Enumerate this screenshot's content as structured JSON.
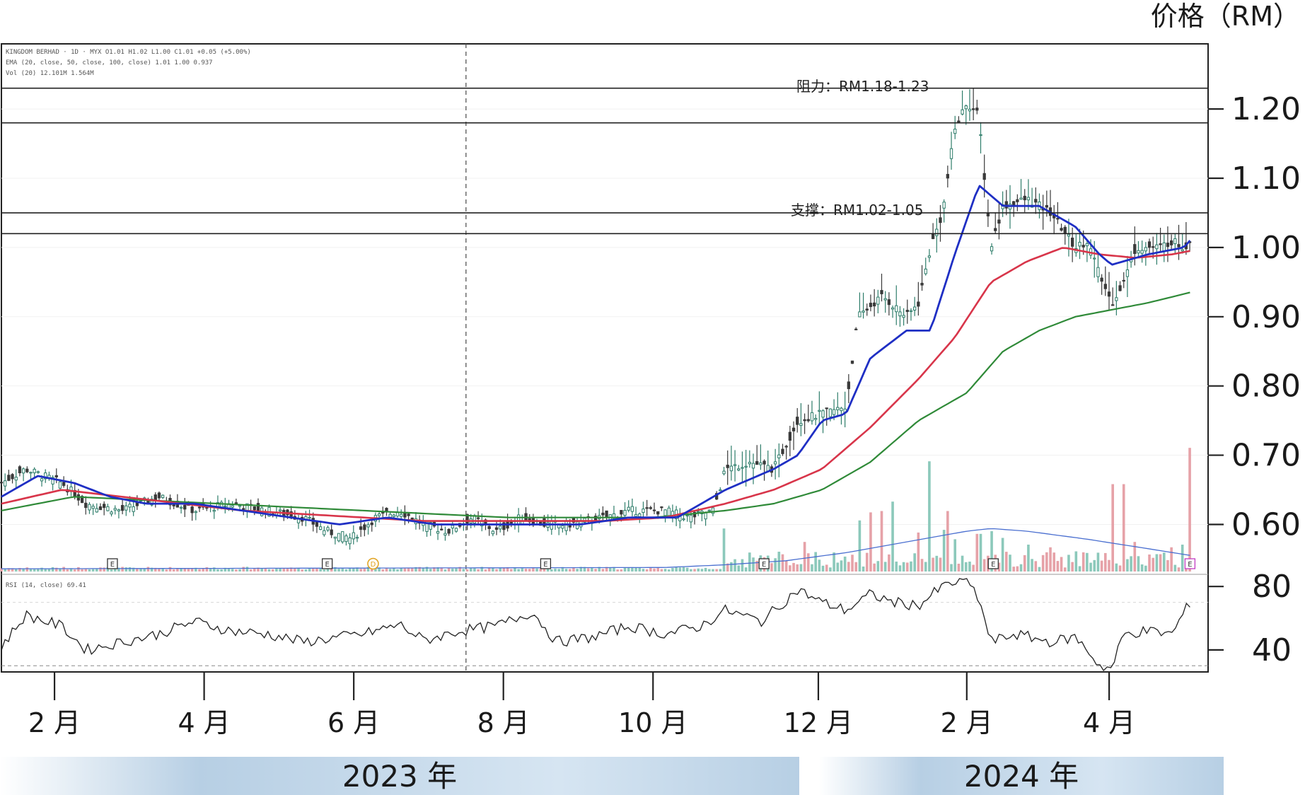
{
  "chart_data": {
    "type": "candlestick",
    "price_axis_title": "价格（RM）",
    "price_ticks": [
      "1.20",
      "1.10",
      "1.00",
      "0.90",
      "0.80",
      "0.70",
      "0.60"
    ],
    "price_tick_values": [
      1.2,
      1.1,
      1.0,
      0.9,
      0.8,
      0.7,
      0.6
    ],
    "price_range": [
      0.53,
      1.29
    ],
    "rsi_ticks": [
      "80",
      "40"
    ],
    "rsi_tick_values": [
      80,
      40
    ],
    "rsi_range": [
      27,
      85
    ],
    "month_labels": [
      "2 月",
      "4 月",
      "6 月",
      "8 月",
      "10 月",
      "12 月",
      "2 月",
      "4 月"
    ],
    "month_positions": [
      0.044,
      0.168,
      0.292,
      0.416,
      0.54,
      0.677,
      0.8,
      0.918
    ],
    "year_labels": [
      "2023 年",
      "2024 年"
    ],
    "legend_lines": [
      "KINGDOM BERHAD · 1D · MYX  O1.01  H1.02  L1.00  C1.01  +0.05 (+5.00%)",
      "EMA (20, close, 50, close, 100, close)  1.01  1.00  0.937",
      "Vol (20)  12.101M  1.564M"
    ],
    "rsi_legend": "RSI (14, close)  69.41",
    "resistance": {
      "label": "阻力：RM1.18-1.23",
      "low": 1.18,
      "high": 1.23
    },
    "support": {
      "label": "支撑：RM1.02-1.05",
      "low": 1.02,
      "high": 1.05
    },
    "event_markers": [
      {
        "symbol": "E",
        "t": 0.092
      },
      {
        "symbol": "E",
        "t": 0.27
      },
      {
        "symbol": "D",
        "t": 0.308
      },
      {
        "symbol": "E",
        "t": 0.451
      },
      {
        "symbol": "E",
        "t": 0.632
      },
      {
        "symbol": "E",
        "t": 0.822
      },
      {
        "symbol": "E",
        "t": 0.985
      }
    ],
    "series": {
      "price_keys": [
        [
          0,
          0.66
        ],
        [
          0.02,
          0.68
        ],
        [
          0.05,
          0.66
        ],
        [
          0.07,
          0.63
        ],
        [
          0.1,
          0.62
        ],
        [
          0.13,
          0.64
        ],
        [
          0.16,
          0.62
        ],
        [
          0.19,
          0.63
        ],
        [
          0.22,
          0.62
        ],
        [
          0.25,
          0.61
        ],
        [
          0.27,
          0.59
        ],
        [
          0.29,
          0.58
        ],
        [
          0.31,
          0.61
        ],
        [
          0.33,
          0.62
        ],
        [
          0.35,
          0.6
        ],
        [
          0.37,
          0.59
        ],
        [
          0.39,
          0.61
        ],
        [
          0.41,
          0.59
        ],
        [
          0.43,
          0.61
        ],
        [
          0.45,
          0.6
        ],
        [
          0.47,
          0.6
        ],
        [
          0.5,
          0.61
        ],
        [
          0.52,
          0.62
        ],
        [
          0.55,
          0.62
        ],
        [
          0.57,
          0.61
        ],
        [
          0.59,
          0.62
        ],
        [
          0.6,
          0.68
        ],
        [
          0.62,
          0.69
        ],
        [
          0.64,
          0.68
        ],
        [
          0.66,
          0.75
        ],
        [
          0.68,
          0.76
        ],
        [
          0.7,
          0.77
        ],
        [
          0.71,
          0.9
        ],
        [
          0.73,
          0.93
        ],
        [
          0.75,
          0.9
        ],
        [
          0.76,
          0.92
        ],
        [
          0.77,
          1.0
        ],
        [
          0.78,
          1.05
        ],
        [
          0.79,
          1.17
        ],
        [
          0.8,
          1.21
        ],
        [
          0.81,
          1.19
        ],
        [
          0.82,
          1.0
        ],
        [
          0.83,
          1.06
        ],
        [
          0.85,
          1.07
        ],
        [
          0.87,
          1.05
        ],
        [
          0.89,
          1.0
        ],
        [
          0.9,
          1.01
        ],
        [
          0.91,
          0.96
        ],
        [
          0.92,
          0.92
        ],
        [
          0.93,
          0.95
        ],
        [
          0.94,
          1.0
        ],
        [
          0.96,
          1.0
        ],
        [
          0.97,
          1.01
        ],
        [
          0.98,
          1.0
        ],
        [
          0.985,
          1.01
        ]
      ],
      "ema20_keys": [
        [
          0,
          0.64
        ],
        [
          0.03,
          0.67
        ],
        [
          0.06,
          0.66
        ],
        [
          0.09,
          0.64
        ],
        [
          0.12,
          0.63
        ],
        [
          0.16,
          0.63
        ],
        [
          0.2,
          0.62
        ],
        [
          0.24,
          0.61
        ],
        [
          0.28,
          0.6
        ],
        [
          0.32,
          0.61
        ],
        [
          0.36,
          0.6
        ],
        [
          0.4,
          0.6
        ],
        [
          0.44,
          0.6
        ],
        [
          0.48,
          0.6
        ],
        [
          0.52,
          0.61
        ],
        [
          0.56,
          0.61
        ],
        [
          0.6,
          0.65
        ],
        [
          0.64,
          0.68
        ],
        [
          0.66,
          0.7
        ],
        [
          0.68,
          0.75
        ],
        [
          0.7,
          0.76
        ],
        [
          0.72,
          0.84
        ],
        [
          0.75,
          0.88
        ],
        [
          0.77,
          0.88
        ],
        [
          0.79,
          0.99
        ],
        [
          0.81,
          1.09
        ],
        [
          0.83,
          1.06
        ],
        [
          0.86,
          1.06
        ],
        [
          0.89,
          1.03
        ],
        [
          0.91,
          0.99
        ],
        [
          0.92,
          0.975
        ],
        [
          0.95,
          0.99
        ],
        [
          0.98,
          1.0
        ],
        [
          0.985,
          1.01
        ]
      ],
      "ema50_keys": [
        [
          0,
          0.63
        ],
        [
          0.05,
          0.65
        ],
        [
          0.1,
          0.64
        ],
        [
          0.15,
          0.63
        ],
        [
          0.2,
          0.62
        ],
        [
          0.25,
          0.615
        ],
        [
          0.3,
          0.61
        ],
        [
          0.35,
          0.605
        ],
        [
          0.4,
          0.605
        ],
        [
          0.45,
          0.605
        ],
        [
          0.5,
          0.605
        ],
        [
          0.55,
          0.61
        ],
        [
          0.6,
          0.63
        ],
        [
          0.64,
          0.65
        ],
        [
          0.68,
          0.68
        ],
        [
          0.72,
          0.74
        ],
        [
          0.76,
          0.81
        ],
        [
          0.79,
          0.87
        ],
        [
          0.82,
          0.95
        ],
        [
          0.85,
          0.98
        ],
        [
          0.88,
          1.0
        ],
        [
          0.91,
          0.99
        ],
        [
          0.94,
          0.985
        ],
        [
          0.97,
          0.99
        ],
        [
          0.985,
          0.995
        ]
      ],
      "ema100_keys": [
        [
          0,
          0.62
        ],
        [
          0.06,
          0.64
        ],
        [
          0.12,
          0.635
        ],
        [
          0.18,
          0.63
        ],
        [
          0.24,
          0.625
        ],
        [
          0.3,
          0.62
        ],
        [
          0.36,
          0.615
        ],
        [
          0.42,
          0.61
        ],
        [
          0.48,
          0.61
        ],
        [
          0.54,
          0.61
        ],
        [
          0.6,
          0.62
        ],
        [
          0.64,
          0.63
        ],
        [
          0.68,
          0.65
        ],
        [
          0.72,
          0.69
        ],
        [
          0.76,
          0.75
        ],
        [
          0.8,
          0.79
        ],
        [
          0.83,
          0.85
        ],
        [
          0.86,
          0.88
        ],
        [
          0.89,
          0.9
        ],
        [
          0.92,
          0.91
        ],
        [
          0.95,
          0.92
        ],
        [
          0.985,
          0.935
        ]
      ],
      "rsi_keys": [
        [
          0,
          42
        ],
        [
          0.02,
          62
        ],
        [
          0.05,
          55
        ],
        [
          0.07,
          40
        ],
        [
          0.1,
          45
        ],
        [
          0.13,
          50
        ],
        [
          0.16,
          58
        ],
        [
          0.19,
          52
        ],
        [
          0.22,
          50
        ],
        [
          0.25,
          45
        ],
        [
          0.28,
          48
        ],
        [
          0.3,
          50
        ],
        [
          0.33,
          56
        ],
        [
          0.35,
          46
        ],
        [
          0.38,
          52
        ],
        [
          0.41,
          55
        ],
        [
          0.44,
          64
        ],
        [
          0.46,
          45
        ],
        [
          0.49,
          48
        ],
        [
          0.52,
          55
        ],
        [
          0.55,
          50
        ],
        [
          0.58,
          55
        ],
        [
          0.6,
          65
        ],
        [
          0.63,
          58
        ],
        [
          0.66,
          78
        ],
        [
          0.68,
          70
        ],
        [
          0.7,
          65
        ],
        [
          0.72,
          75
        ],
        [
          0.74,
          70
        ],
        [
          0.76,
          68
        ],
        [
          0.78,
          80
        ],
        [
          0.8,
          85
        ],
        [
          0.81,
          72
        ],
        [
          0.82,
          45
        ],
        [
          0.84,
          50
        ],
        [
          0.87,
          45
        ],
        [
          0.89,
          48
        ],
        [
          0.9,
          40
        ],
        [
          0.91,
          30
        ],
        [
          0.92,
          28
        ],
        [
          0.93,
          50
        ],
        [
          0.95,
          52
        ],
        [
          0.97,
          50
        ],
        [
          0.985,
          70
        ]
      ],
      "volume_spikes": [
        [
          0.6,
          0.32
        ],
        [
          0.63,
          0.12
        ],
        [
          0.665,
          0.22
        ],
        [
          0.71,
          0.38
        ],
        [
          0.72,
          0.44
        ],
        [
          0.73,
          0.45
        ],
        [
          0.74,
          0.52
        ],
        [
          0.76,
          0.29
        ],
        [
          0.77,
          0.82
        ],
        [
          0.78,
          0.31
        ],
        [
          0.785,
          0.45
        ],
        [
          0.79,
          0.24
        ],
        [
          0.81,
          0.28
        ],
        [
          0.82,
          0.3
        ],
        [
          0.83,
          0.25
        ],
        [
          0.85,
          0.2
        ],
        [
          0.87,
          0.18
        ],
        [
          0.89,
          0.15
        ],
        [
          0.91,
          0.14
        ],
        [
          0.92,
          0.65
        ],
        [
          0.93,
          0.65
        ],
        [
          0.94,
          0.22
        ],
        [
          0.97,
          0.18
        ],
        [
          0.98,
          0.2
        ],
        [
          0.985,
          0.92
        ]
      ],
      "volume_ma_keys": [
        [
          0,
          0.02
        ],
        [
          0.55,
          0.03
        ],
        [
          0.6,
          0.05
        ],
        [
          0.65,
          0.08
        ],
        [
          0.7,
          0.14
        ],
        [
          0.75,
          0.22
        ],
        [
          0.8,
          0.3
        ],
        [
          0.82,
          0.32
        ],
        [
          0.85,
          0.3
        ],
        [
          0.9,
          0.24
        ],
        [
          0.95,
          0.17
        ],
        [
          0.985,
          0.12
        ]
      ]
    }
  },
  "colors": {
    "up": "#2e7d6a",
    "down": "#3a3a3a",
    "ema20": "#1f2fc4",
    "ema50": "#d8354a",
    "ema100": "#2f8a38",
    "vol_up": "#8cc9bb",
    "vol_down": "#e6a2a8",
    "band_2023": "#c9dcec",
    "band_2024": "#bfd6ea"
  }
}
